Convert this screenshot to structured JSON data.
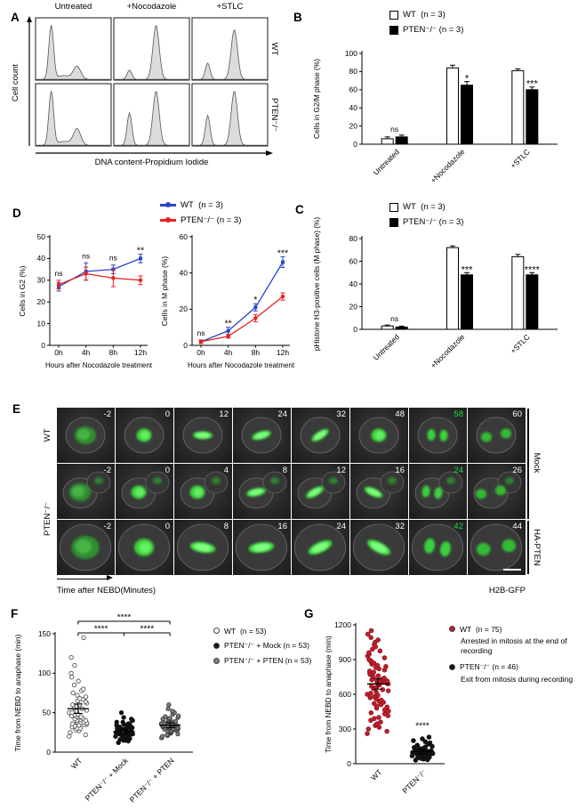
{
  "panelA": {
    "label": "A",
    "col_headers": [
      "Untreated",
      "+Nocodazole",
      "+STLC"
    ],
    "row_labels": [
      "WT",
      "PTEN⁻/⁻"
    ],
    "ylabel": "Cell count",
    "xlabel": "DNA content-Propidium Iodide",
    "histograms": [
      [
        {
          "peaks": [
            [
              0.2,
              1.0,
              0.045
            ],
            [
              0.55,
              0.24,
              0.07
            ],
            [
              0.37,
              0.07,
              0.12
            ]
          ]
        },
        {
          "peaks": [
            [
              0.2,
              0.17,
              0.045
            ],
            [
              0.56,
              1.0,
              0.06
            ]
          ]
        },
        {
          "peaks": [
            [
              0.2,
              0.3,
              0.045
            ],
            [
              0.56,
              0.92,
              0.06
            ]
          ]
        }
      ],
      [
        {
          "peaks": [
            [
              0.2,
              1.0,
              0.045
            ],
            [
              0.55,
              0.3,
              0.07
            ],
            [
              0.37,
              0.07,
              0.12
            ]
          ]
        },
        {
          "peaks": [
            [
              0.2,
              0.6,
              0.045
            ],
            [
              0.56,
              1.0,
              0.06
            ]
          ]
        },
        {
          "peaks": [
            [
              0.2,
              0.55,
              0.045
            ],
            [
              0.56,
              1.0,
              0.06
            ]
          ]
        }
      ]
    ]
  },
  "panelB": {
    "label": "B",
    "legend": [
      {
        "label": "WT",
        "count": "(n = 3)",
        "swatch": "#ffffff"
      },
      {
        "label": "PTEN⁻/⁻",
        "count": "(n = 3)",
        "swatch": "#000000"
      }
    ],
    "chart": {
      "type": "bar",
      "categories": [
        "Untreated",
        "+Nocodazole",
        "+STLC"
      ],
      "series": [
        {
          "name": "WT",
          "color": "#ffffff",
          "values": [
            6,
            84,
            81
          ],
          "errors": [
            2,
            3,
            2
          ]
        },
        {
          "name": "PTEN⁻/⁻",
          "color": "#000000",
          "values": [
            8,
            65,
            60
          ],
          "errors": [
            2,
            4,
            3
          ]
        }
      ],
      "ylabel": "Cells in G2/M phase (%)",
      "ylim": [
        0,
        100
      ],
      "yticks": [
        0,
        20,
        40,
        60,
        80,
        100
      ],
      "sig": [
        {
          "cat": 0,
          "on": "group",
          "text": "ns"
        },
        {
          "cat": 1,
          "on": "s2",
          "text": "*"
        },
        {
          "cat": 2,
          "on": "s2",
          "text": "***"
        }
      ]
    }
  },
  "panelC": {
    "label": "C",
    "legend": [
      {
        "label": "WT",
        "count": "(n = 3)",
        "swatch": "#ffffff"
      },
      {
        "label": "PTEN⁻/⁻",
        "count": "(n = 3)",
        "swatch": "#000000"
      }
    ],
    "chart": {
      "type": "bar",
      "categories": [
        "Untreated",
        "+Nocodazole",
        "+STLC"
      ],
      "series": [
        {
          "name": "WT",
          "color": "#ffffff",
          "values": [
            3,
            72,
            64
          ],
          "errors": [
            0.8,
            1.5,
            2
          ]
        },
        {
          "name": "PTEN⁻/⁻",
          "color": "#000000",
          "values": [
            2,
            48,
            48
          ],
          "errors": [
            0.8,
            2,
            2
          ]
        }
      ],
      "ylabel": "pHistone H3-positive cells (M phase) (%)",
      "ylim": [
        0,
        80
      ],
      "yticks": [
        0,
        20,
        40,
        60,
        80
      ],
      "sig": [
        {
          "cat": 0,
          "on": "group",
          "text": "ns"
        },
        {
          "cat": 1,
          "on": "s2",
          "text": "***"
        },
        {
          "cat": 2,
          "on": "s2",
          "text": "****"
        }
      ]
    }
  },
  "panelD": {
    "label": "D",
    "legend": [
      {
        "label": "WT",
        "count": "(n = 3)",
        "swatch": "#2746c8"
      },
      {
        "label": "PTEN⁻/⁻",
        "count": "(n = 3)",
        "swatch": "#e8211d"
      }
    ],
    "charts": [
      {
        "type": "line",
        "x": [
          "0h",
          "4h",
          "8h",
          "12h"
        ],
        "series": [
          {
            "name": "WT",
            "color": "#2746c8",
            "values": [
              27,
              34,
              35,
              40
            ],
            "errors": [
              2,
              4,
              2,
              2
            ]
          },
          {
            "name": "PTEN⁻/⁻",
            "color": "#e8211d",
            "values": [
              28,
              33,
              31,
              30
            ],
            "errors": [
              2,
              3,
              4,
              2
            ]
          }
        ],
        "ylabel": "Cells in G2 (%)",
        "xlabel": "Hours after Nocodazole treatment",
        "ylim": [
          0,
          50
        ],
        "yticks": [
          0,
          10,
          20,
          30,
          40,
          50
        ],
        "sig": [
          "ns",
          "ns",
          "ns",
          "**"
        ]
      },
      {
        "type": "line",
        "x": [
          "0h",
          "4h",
          "8h",
          "12h"
        ],
        "series": [
          {
            "name": "WT",
            "color": "#2746c8",
            "values": [
              2,
              8,
              21,
              46
            ],
            "errors": [
              1,
              2,
              2,
              3
            ]
          },
          {
            "name": "PTEN⁻/⁻",
            "color": "#e8211d",
            "values": [
              2,
              5,
              15,
              27
            ],
            "errors": [
              1,
              1,
              2,
              2
            ]
          }
        ],
        "ylabel": "Cells in M phase (%)",
        "xlabel": "Hours after Nocodazole treatment",
        "ylim": [
          0,
          60
        ],
        "yticks": [
          0,
          20,
          40,
          60
        ],
        "sig": [
          "ns",
          "**",
          "*",
          "***"
        ]
      }
    ]
  },
  "panelE": {
    "label": "E",
    "left_labels": [
      "WT",
      "PTEN⁻/⁻"
    ],
    "right_labels": [
      "Mock",
      "HA-PTEN"
    ],
    "time_label": "Time after NEBD(Minutes)",
    "marker_label": "H2B-GFP",
    "rows": [
      {
        "style": "single",
        "highlight": 6,
        "times": [
          "-2",
          "0",
          "12",
          "24",
          "32",
          "48",
          "58",
          "60"
        ],
        "shapes": [
          "inter",
          "mito",
          "plate",
          "plate",
          "plate",
          "mito",
          "ana",
          "telo"
        ]
      },
      {
        "style": "two",
        "highlight": 6,
        "times": [
          "-2",
          "0",
          "4",
          "8",
          "12",
          "16",
          "24",
          "26"
        ],
        "shapes": [
          "inter",
          "mito",
          "mito",
          "plate",
          "plate",
          "plate",
          "ana",
          "telo"
        ]
      },
      {
        "style": "large",
        "highlight": 6,
        "times": [
          "-2",
          "0",
          "8",
          "16",
          "24",
          "32",
          "42",
          "44"
        ],
        "shapes": [
          "inter",
          "mito",
          "plate",
          "plate",
          "plate",
          "plate",
          "ana",
          "telo"
        ]
      }
    ]
  },
  "panelF": {
    "label": "F",
    "legend": [
      {
        "label": "WT",
        "count": "(n = 53)",
        "swatch": "#ffffff"
      },
      {
        "label": "PTEN⁻/⁻ + Mock",
        "count": "(n = 53)",
        "swatch": "#111111"
      },
      {
        "label": "PTEN⁻/⁻ + PTEN",
        "count": "(n = 53)",
        "swatch": "#808080"
      }
    ],
    "chart": {
      "type": "scatter",
      "ylabel": "Time from NEBD to anaphase (min)",
      "ylim": [
        0,
        150
      ],
      "yticks": [
        0,
        50,
        100,
        150
      ],
      "groups": [
        {
          "label": "WT",
          "fill": "#ffffff",
          "stroke": "#555555",
          "mean": 55,
          "err": 6,
          "values": [
            20,
            22,
            25,
            27,
            28,
            30,
            30,
            32,
            33,
            34,
            35,
            35,
            36,
            37,
            38,
            38,
            40,
            40,
            41,
            42,
            43,
            44,
            45,
            45,
            46,
            47,
            48,
            50,
            50,
            52,
            53,
            55,
            56,
            58,
            60,
            60,
            62,
            64,
            65,
            67,
            68,
            70,
            72,
            75,
            78,
            80,
            85,
            90,
            95,
            100,
            110,
            120,
            145
          ]
        },
        {
          "label": "PTEN⁻/⁻ + Mock",
          "fill": "#111111",
          "stroke": "#111111",
          "mean": 26,
          "err": 3,
          "values": [
            12,
            14,
            15,
            15,
            16,
            17,
            18,
            18,
            19,
            20,
            20,
            20,
            21,
            21,
            22,
            22,
            22,
            23,
            23,
            24,
            24,
            24,
            25,
            25,
            25,
            26,
            26,
            26,
            27,
            27,
            28,
            28,
            28,
            29,
            29,
            30,
            30,
            31,
            31,
            32,
            32,
            33,
            34,
            34,
            35,
            36,
            36,
            38,
            38,
            40,
            42,
            44,
            50
          ]
        },
        {
          "label": "PTEN⁻/⁻ + PTEN",
          "fill": "#808080",
          "stroke": "#3a3a3a",
          "mean": 34,
          "err": 3,
          "values": [
            18,
            20,
            21,
            22,
            23,
            24,
            25,
            25,
            26,
            27,
            27,
            28,
            28,
            29,
            29,
            30,
            30,
            30,
            31,
            31,
            32,
            32,
            32,
            33,
            33,
            34,
            34,
            34,
            35,
            35,
            36,
            36,
            36,
            37,
            37,
            38,
            38,
            39,
            39,
            40,
            40,
            41,
            42,
            42,
            43,
            44,
            45,
            46,
            48,
            50,
            52,
            55,
            60
          ]
        }
      ],
      "brackets": [
        {
          "a": 0,
          "b": 1,
          "text": "****",
          "level": 0
        },
        {
          "a": 1,
          "b": 2,
          "text": "****",
          "level": 0
        },
        {
          "a": 0,
          "b": 2,
          "text": "****",
          "level": 1
        }
      ]
    }
  },
  "panelG": {
    "label": "G",
    "legend": [
      {
        "label": "WT",
        "count": "(n = 75)",
        "swatch": "#c41e2a",
        "desc": "Arrested in mitosis at the end of recording"
      },
      {
        "label": "PTEN⁻/⁻",
        "count": "(n = 46)",
        "swatch": "#111111",
        "desc": "Exit from mitosis during recording"
      }
    ],
    "chart": {
      "type": "scatter",
      "ylabel": "Time from NEBD to anaphase (min)",
      "ylim": [
        0,
        1200
      ],
      "yticks": [
        0,
        300,
        600,
        900,
        1200
      ],
      "groups": [
        {
          "label": "WT",
          "fill": "#c41e2a",
          "stroke": "#8f1520",
          "mean": 690,
          "err": 45,
          "values": [
            260,
            280,
            300,
            315,
            330,
            345,
            360,
            375,
            390,
            400,
            415,
            430,
            440,
            455,
            465,
            480,
            490,
            500,
            510,
            520,
            530,
            540,
            550,
            560,
            570,
            580,
            590,
            600,
            610,
            620,
            630,
            640,
            650,
            660,
            670,
            680,
            690,
            695,
            700,
            705,
            710,
            715,
            720,
            725,
            730,
            740,
            750,
            760,
            770,
            780,
            790,
            800,
            810,
            820,
            830,
            840,
            850,
            860,
            870,
            880,
            890,
            900,
            915,
            930,
            945,
            960,
            975,
            990,
            1010,
            1030,
            1050,
            1070,
            1090,
            1120,
            1150
          ]
        },
        {
          "label": "PTEN⁻/⁻",
          "fill": "#111111",
          "stroke": "#111111",
          "mean": 105,
          "err": 18,
          "values": [
            30,
            35,
            40,
            45,
            50,
            55,
            58,
            60,
            62,
            65,
            68,
            70,
            72,
            75,
            78,
            80,
            82,
            85,
            88,
            90,
            92,
            95,
            98,
            100,
            102,
            105,
            108,
            110,
            112,
            115,
            118,
            120,
            125,
            130,
            135,
            140,
            145,
            150,
            155,
            160,
            170,
            180,
            190,
            200,
            215,
            230
          ]
        }
      ],
      "sig": {
        "group": 1,
        "at": 290,
        "text": "****"
      }
    }
  }
}
